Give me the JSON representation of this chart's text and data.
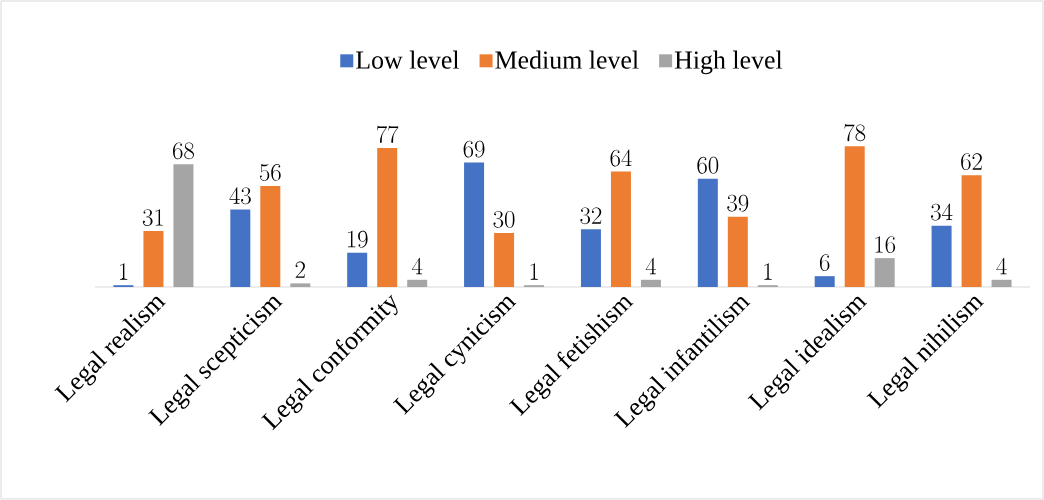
{
  "chart_data": {
    "type": "bar",
    "categories": [
      "Legal realism",
      "Legal scepticism",
      "Legal conformity",
      "Legal cynicism",
      "Legal fetishism",
      "Legal infantilism",
      "Legal idealism",
      "Legal nihilism"
    ],
    "series": [
      {
        "name": "Low level",
        "color": "#4472c4",
        "values": [
          1,
          43,
          19,
          69,
          32,
          60,
          6,
          34
        ]
      },
      {
        "name": "Medium level",
        "color": "#ed7d31",
        "values": [
          31,
          56,
          77,
          30,
          64,
          39,
          78,
          62
        ]
      },
      {
        "name": "High level",
        "color": "#a5a5a5",
        "values": [
          68,
          2,
          4,
          1,
          4,
          1,
          16,
          4
        ]
      }
    ],
    "data_labels": true,
    "legend": "top"
  }
}
